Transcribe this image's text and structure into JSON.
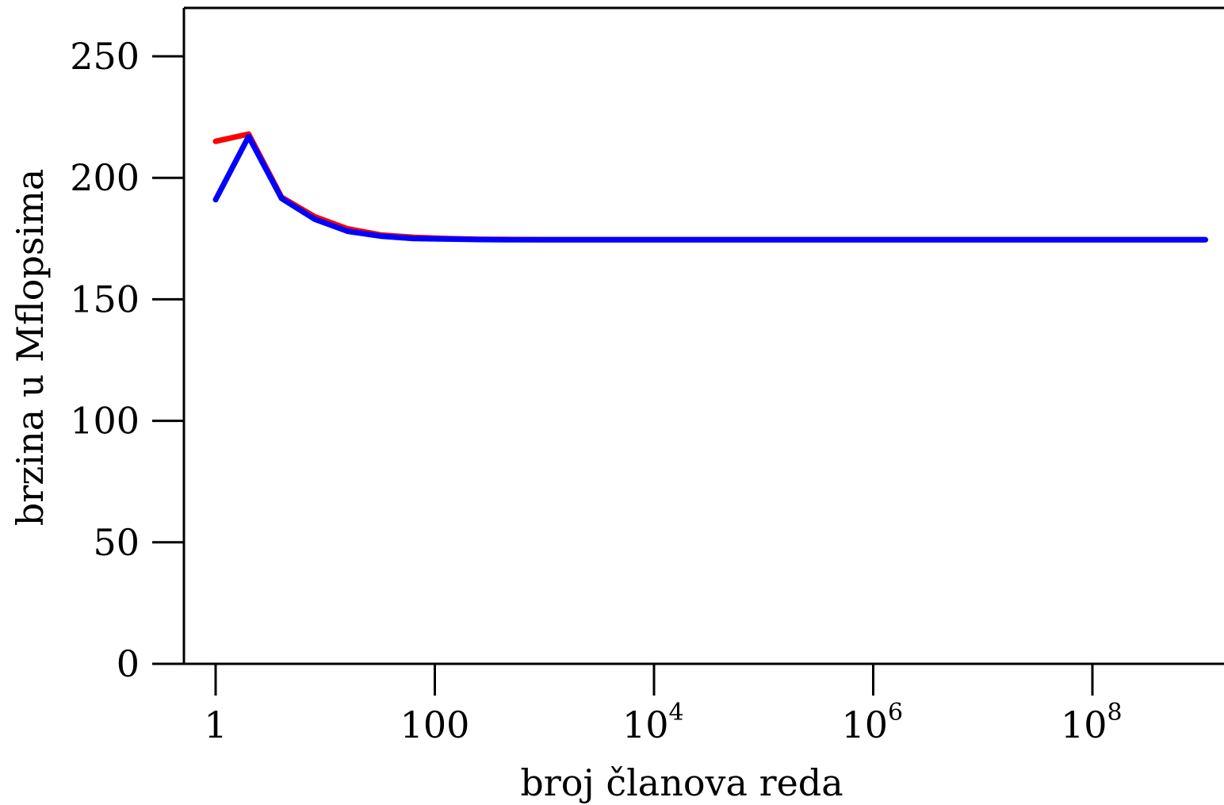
{
  "chart_data": {
    "type": "line",
    "title": "",
    "xlabel": "broj članova reda",
    "ylabel": "brzina u Mflopsima",
    "x_scale": "log10",
    "x": [
      1,
      2,
      4,
      8,
      16,
      32,
      64,
      128,
      256,
      512,
      1024,
      4096,
      16384,
      65536,
      262144,
      1048576,
      4194304,
      16777216,
      67108864,
      268435456,
      1073741824
    ],
    "series": [
      {
        "color": "#ff0000",
        "values": [
          215,
          218,
          192,
          184,
          179,
          176.5,
          175.5,
          175,
          174.7,
          174.6,
          174.5,
          174.5,
          174.5,
          174.5,
          174.5,
          174.5,
          174.5,
          174.5,
          174.5,
          174.5,
          174.5
        ]
      },
      {
        "color": "#0000ff",
        "values": [
          191,
          217,
          191.5,
          183,
          178,
          176,
          175,
          174.8,
          174.6,
          174.5,
          174.5,
          174.5,
          174.5,
          174.5,
          174.5,
          174.5,
          174.5,
          174.5,
          174.5,
          174.5,
          174.5
        ]
      }
    ],
    "xlim": [
      0.5,
      1100000000
    ],
    "ylim": [
      0,
      270
    ],
    "x_ticks": [
      {
        "value": 1,
        "base": "1",
        "exp": ""
      },
      {
        "value": 100,
        "base": "100",
        "exp": ""
      },
      {
        "value": 10000,
        "base": "10",
        "exp": "4"
      },
      {
        "value": 1000000,
        "base": "10",
        "exp": "6"
      },
      {
        "value": 100000000,
        "base": "10",
        "exp": "8"
      }
    ],
    "y_ticks": [
      {
        "value": 0,
        "label": "0"
      },
      {
        "value": 50,
        "label": "50"
      },
      {
        "value": 100,
        "label": "100"
      },
      {
        "value": 150,
        "label": "150"
      },
      {
        "value": 200,
        "label": "200"
      },
      {
        "value": 250,
        "label": "250"
      }
    ],
    "grid": false,
    "legend": "none"
  }
}
